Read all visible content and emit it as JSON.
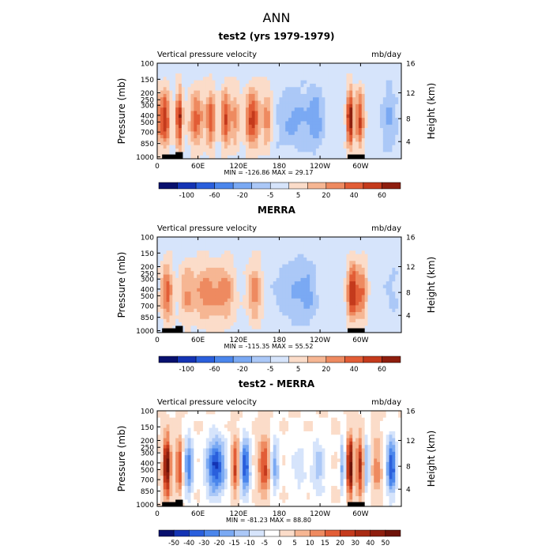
{
  "figure": {
    "title": "ANN",
    "title_color": "#8a8a8a"
  },
  "chart_data": [
    {
      "type": "heatmap",
      "title": "test2 (yrs 1979-1979)",
      "left_label": "Vertical pressure velocity",
      "right_label": "mb/day",
      "ylabel": "Pressure (mb)",
      "ylabel_right": "Height (km)",
      "x_ticks": [
        "0",
        "60E",
        "120E",
        "180",
        "120W",
        "60W"
      ],
      "y_ticks": [
        "100",
        "150",
        "200",
        "250",
        "300",
        "400",
        "500",
        "700",
        "850",
        "1000"
      ],
      "y_ticks_right": [
        "16",
        "12",
        "8",
        "4"
      ],
      "stats": "MIN = -126.86   MAX =  29.17",
      "colorbar_ticks": [
        "-100",
        "-60",
        "-20",
        "-5",
        "5",
        "20",
        "40",
        "60"
      ],
      "colorbar_levels": 12,
      "colorbar_colors": [
        "#08106e",
        "#1434b4",
        "#2a5fdc",
        "#4b86ec",
        "#7aa9f3",
        "#abc8f7",
        "#d6e4fb",
        "#fbdcc9",
        "#f6b693",
        "#ee8a60",
        "#e25d36",
        "#c43a1c",
        "#8e1e0e"
      ]
    },
    {
      "type": "heatmap",
      "title": "MERRA",
      "left_label": "Vertical pressure velocity",
      "right_label": "mb/day",
      "ylabel": "Pressure (mb)",
      "ylabel_right": "Height (km)",
      "x_ticks": [
        "0",
        "60E",
        "120E",
        "180",
        "120W",
        "60W"
      ],
      "y_ticks": [
        "100",
        "150",
        "200",
        "250",
        "300",
        "400",
        "500",
        "700",
        "850",
        "1000"
      ],
      "y_ticks_right": [
        "16",
        "12",
        "8",
        "4"
      ],
      "stats": "MIN = -115.35   MAX =  55.52",
      "colorbar_ticks": [
        "-100",
        "-60",
        "-20",
        "-5",
        "5",
        "20",
        "40",
        "60"
      ],
      "colorbar_levels": 12,
      "colorbar_colors": [
        "#08106e",
        "#1434b4",
        "#2a5fdc",
        "#4b86ec",
        "#7aa9f3",
        "#abc8f7",
        "#d6e4fb",
        "#fbdcc9",
        "#f6b693",
        "#ee8a60",
        "#e25d36",
        "#c43a1c",
        "#8e1e0e"
      ]
    },
    {
      "type": "heatmap",
      "title": "test2 - MERRA",
      "left_label": "Vertical pressure velocity",
      "right_label": "mb/day",
      "ylabel": "Pressure (mb)",
      "ylabel_right": "Height (km)",
      "x_ticks": [
        "0",
        "60E",
        "120E",
        "180",
        "120W",
        "60W"
      ],
      "y_ticks": [
        "100",
        "150",
        "200",
        "250",
        "300",
        "400",
        "500",
        "700",
        "850",
        "1000"
      ],
      "y_ticks_right": [
        "16",
        "12",
        "8",
        "4"
      ],
      "stats": "MIN = -81.23   MAX =  88.80",
      "colorbar_ticks": [
        "-50",
        "-40",
        "-30",
        "-20",
        "-15",
        "-10",
        "-5",
        "0",
        "5",
        "10",
        "15",
        "20",
        "30",
        "40",
        "50"
      ],
      "colorbar_levels": 15,
      "colorbar_colors": [
        "#08106e",
        "#1434b4",
        "#2a5fdc",
        "#4b86ec",
        "#7aa9f3",
        "#abc8f7",
        "#d6e4fb",
        "#ffffff",
        "#fbdcc9",
        "#f6b693",
        "#ee8a60",
        "#e25d36",
        "#c43a1c",
        "#a82a12",
        "#8e1e0e",
        "#6e1208"
      ]
    }
  ]
}
